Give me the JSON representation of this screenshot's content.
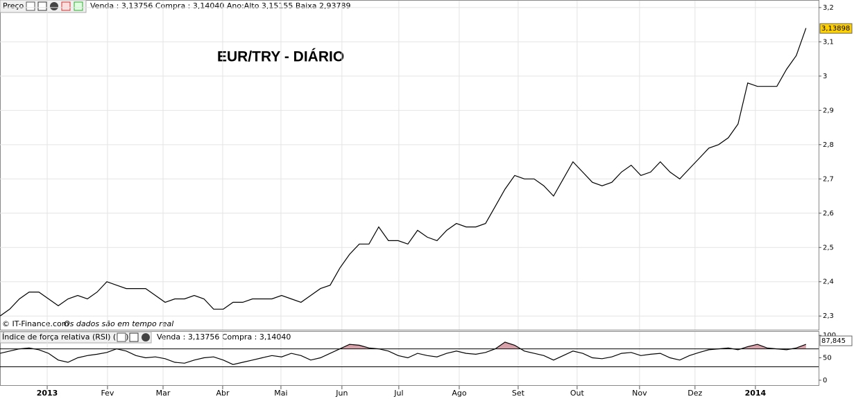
{
  "chart_data": [
    {
      "type": "line",
      "title": "EUR/TRY - DIÁRIO",
      "panel_label": "Preço",
      "header": "Venda : 3,13756 Compra : 3,14040 Ano:Alto 3,15155 Baixa 2,93789",
      "credit": "© IT-Finance.com",
      "credit_note": "Os dados são em tempo real",
      "series": [
        {
          "name": "EUR/TRY",
          "color": "#000000",
          "values": [
            2.3,
            2.32,
            2.35,
            2.37,
            2.37,
            2.35,
            2.33,
            2.35,
            2.36,
            2.35,
            2.37,
            2.4,
            2.39,
            2.38,
            2.38,
            2.38,
            2.36,
            2.34,
            2.35,
            2.35,
            2.36,
            2.35,
            2.32,
            2.32,
            2.34,
            2.34,
            2.35,
            2.35,
            2.35,
            2.36,
            2.35,
            2.34,
            2.36,
            2.38,
            2.39,
            2.44,
            2.48,
            2.51,
            2.51,
            2.56,
            2.52,
            2.52,
            2.51,
            2.55,
            2.53,
            2.52,
            2.55,
            2.57,
            2.56,
            2.56,
            2.57,
            2.62,
            2.67,
            2.71,
            2.7,
            2.7,
            2.68,
            2.65,
            2.7,
            2.75,
            2.72,
            2.69,
            2.68,
            2.69,
            2.72,
            2.74,
            2.71,
            2.72,
            2.75,
            2.72,
            2.7,
            2.73,
            2.76,
            2.79,
            2.8,
            2.82,
            2.86,
            2.98,
            2.97,
            2.97,
            2.97,
            3.02,
            3.06,
            3.14
          ]
        }
      ],
      "last_price": {
        "value": 3.13898,
        "label": "3,13898"
      },
      "xlim": [
        0,
        84.3
      ],
      "xticks": [
        {
          "value": 4.86,
          "label": "2013"
        },
        {
          "value": 11.07,
          "label": "Fev"
        },
        {
          "value": 16.79,
          "label": "Mar"
        },
        {
          "value": 22.93,
          "label": "Abr"
        },
        {
          "value": 28.93,
          "label": "Mai"
        },
        {
          "value": 35.21,
          "label": "Jun"
        },
        {
          "value": 41.07,
          "label": "Jul"
        },
        {
          "value": 47.29,
          "label": "Ago"
        },
        {
          "value": 53.36,
          "label": "Set"
        },
        {
          "value": 59.43,
          "label": "Out"
        },
        {
          "value": 65.86,
          "label": "Nov"
        },
        {
          "value": 71.57,
          "label": "Dez"
        },
        {
          "value": 77.79,
          "label": "2014"
        }
      ],
      "ylim": [
        2.26,
        3.22
      ],
      "yticks": [
        {
          "value": 2.3,
          "label": "2,3"
        },
        {
          "value": 2.4,
          "label": "2,4"
        },
        {
          "value": 2.5,
          "label": "2,5"
        },
        {
          "value": 2.6,
          "label": "2,6"
        },
        {
          "value": 2.7,
          "label": "2,7"
        },
        {
          "value": 2.8,
          "label": "2,8"
        },
        {
          "value": 2.9,
          "label": "2,9"
        },
        {
          "value": 3,
          "label": "3"
        },
        {
          "value": 3.1,
          "label": "3,1"
        },
        {
          "value": 3.2,
          "label": "3,2"
        }
      ],
      "grid": true
    },
    {
      "type": "line",
      "panel_label": "Índice de força relativa (RSI) (14)",
      "header": "Venda : 3,13756 Compra : 3,14040",
      "series": [
        {
          "name": "RSI",
          "color": "#000000",
          "values": [
            60,
            65,
            70,
            72,
            68,
            60,
            45,
            40,
            50,
            55,
            58,
            62,
            70,
            65,
            55,
            50,
            52,
            48,
            40,
            38,
            45,
            50,
            52,
            45,
            35,
            40,
            45,
            50,
            55,
            52,
            60,
            55,
            45,
            50,
            60,
            70,
            80,
            78,
            72,
            70,
            65,
            55,
            50,
            60,
            55,
            52,
            60,
            65,
            60,
            58,
            62,
            70,
            85,
            78,
            65,
            60,
            55,
            45,
            55,
            65,
            60,
            50,
            48,
            52,
            60,
            62,
            55,
            58,
            60,
            50,
            45,
            55,
            62,
            68,
            70,
            72,
            68,
            75,
            80,
            72,
            70,
            68,
            72,
            80
          ]
        }
      ],
      "last_value": {
        "value": 87.845,
        "label": "87,845"
      },
      "levels": [
        30,
        70
      ],
      "xlim": [
        0,
        84.3
      ],
      "ylim": [
        -11,
        108
      ],
      "yticks": [
        0,
        50,
        100
      ],
      "grid": false
    }
  ]
}
